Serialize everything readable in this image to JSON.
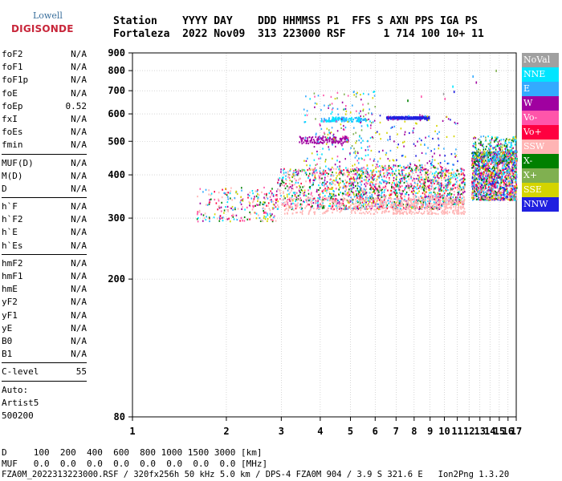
{
  "logo": {
    "line1": "Lowell",
    "line2": "DIGISONDE"
  },
  "header": {
    "line1": "Station    YYYY DAY    DDD HHMMSS P1  FFS S AXN PPS IGA PS",
    "line2": "Fortaleza  2022 Nov09  313 223000 RSF      1 714 100 10+ 11"
  },
  "params": {
    "g1": [
      {
        "k": "foF2",
        "v": "N/A"
      },
      {
        "k": "foF1",
        "v": "N/A"
      },
      {
        "k": "foF1p",
        "v": "N/A"
      },
      {
        "k": "foE",
        "v": "N/A"
      },
      {
        "k": "foEp",
        "v": "0.52"
      },
      {
        "k": "fxI",
        "v": "N/A"
      },
      {
        "k": "foEs",
        "v": "N/A"
      },
      {
        "k": "fmin",
        "v": "N/A"
      }
    ],
    "g2": [
      {
        "k": "MUF(D)",
        "v": "N/A"
      },
      {
        "k": "M(D)",
        "v": "N/A"
      },
      {
        "k": "D",
        "v": "N/A"
      }
    ],
    "g3": [
      {
        "k": "h`F",
        "v": "N/A"
      },
      {
        "k": "h`F2",
        "v": "N/A"
      },
      {
        "k": "h`E",
        "v": "N/A"
      },
      {
        "k": "h`Es",
        "v": "N/A"
      }
    ],
    "g4": [
      {
        "k": "hmF2",
        "v": "N/A"
      },
      {
        "k": "hmF1",
        "v": "N/A"
      },
      {
        "k": "hmE",
        "v": "N/A"
      },
      {
        "k": "yF2",
        "v": "N/A"
      },
      {
        "k": "yF1",
        "v": "N/A"
      },
      {
        "k": "yE",
        "v": "N/A"
      },
      {
        "k": "B0",
        "v": "N/A"
      },
      {
        "k": "B1",
        "v": "N/A"
      }
    ],
    "clevel": {
      "k": "C-level",
      "v": "55"
    },
    "auto": [
      "Auto:",
      "Artist5",
      "500200"
    ]
  },
  "legend": [
    {
      "label": "NoVal",
      "color": "#a0a0a0"
    },
    {
      "label": "NNE",
      "color": "#00e5ff"
    },
    {
      "label": "E",
      "color": "#33aaff"
    },
    {
      "label": "W",
      "color": "#a000a0"
    },
    {
      "label": "Vo-",
      "color": "#ff55aa"
    },
    {
      "label": "Vo+",
      "color": "#ff0040"
    },
    {
      "label": "SSW",
      "color": "#ffb4b4"
    },
    {
      "label": "X-",
      "color": "#008000"
    },
    {
      "label": "X+",
      "color": "#80b050"
    },
    {
      "label": "SSE",
      "color": "#d4d400"
    },
    {
      "label": "NNW",
      "color": "#2020e0"
    }
  ],
  "footer": {
    "line1": "D     100  200  400  600  800 1000 1500 3000 [km]",
    "line2": "MUF   0.0  0.0  0.0  0.0  0.0  0.0  0.0  0.0 [MHz]",
    "line3": "FZA0M_2022313223000.RSF / 320fx256h 50 kHz 5.0 km / DPS-4 FZA0M 904 / 3.9 S 321.6 E   Ion2Png 1.3.20"
  },
  "chart_data": {
    "type": "scatter",
    "xscale": "log",
    "xlim": [
      1,
      17
    ],
    "ylim": [
      80,
      900
    ],
    "xticks": [
      1,
      2,
      3,
      4,
      5,
      6,
      7,
      8,
      9,
      10,
      11,
      12,
      13,
      14,
      15,
      16,
      17
    ],
    "yticks": [
      80,
      200,
      300,
      400,
      500,
      600,
      700,
      800,
      900
    ],
    "yscale": "log",
    "grid": true,
    "clusters": [
      {
        "x": [
          1.6,
          2.9
        ],
        "y": [
          300,
          370
        ],
        "series": "mixed"
      },
      {
        "x": [
          2.9,
          6.0
        ],
        "y": [
          330,
          420
        ],
        "series": "mixed"
      },
      {
        "x": [
          6.0,
          11.6
        ],
        "y": [
          320,
          430
        ],
        "series": "mixed"
      },
      {
        "x": [
          12.2,
          17.0
        ],
        "y": [
          340,
          480
        ],
        "series": "mixed"
      },
      {
        "x": [
          6.5,
          8.9
        ],
        "y": [
          583,
          592
        ],
        "series": "NNW"
      },
      {
        "x": [
          4.0,
          5.6
        ],
        "y": [
          573,
          590
        ],
        "series": "E"
      },
      {
        "x": [
          3.4,
          4.9
        ],
        "y": [
          500,
          520
        ],
        "series": "W"
      }
    ]
  }
}
